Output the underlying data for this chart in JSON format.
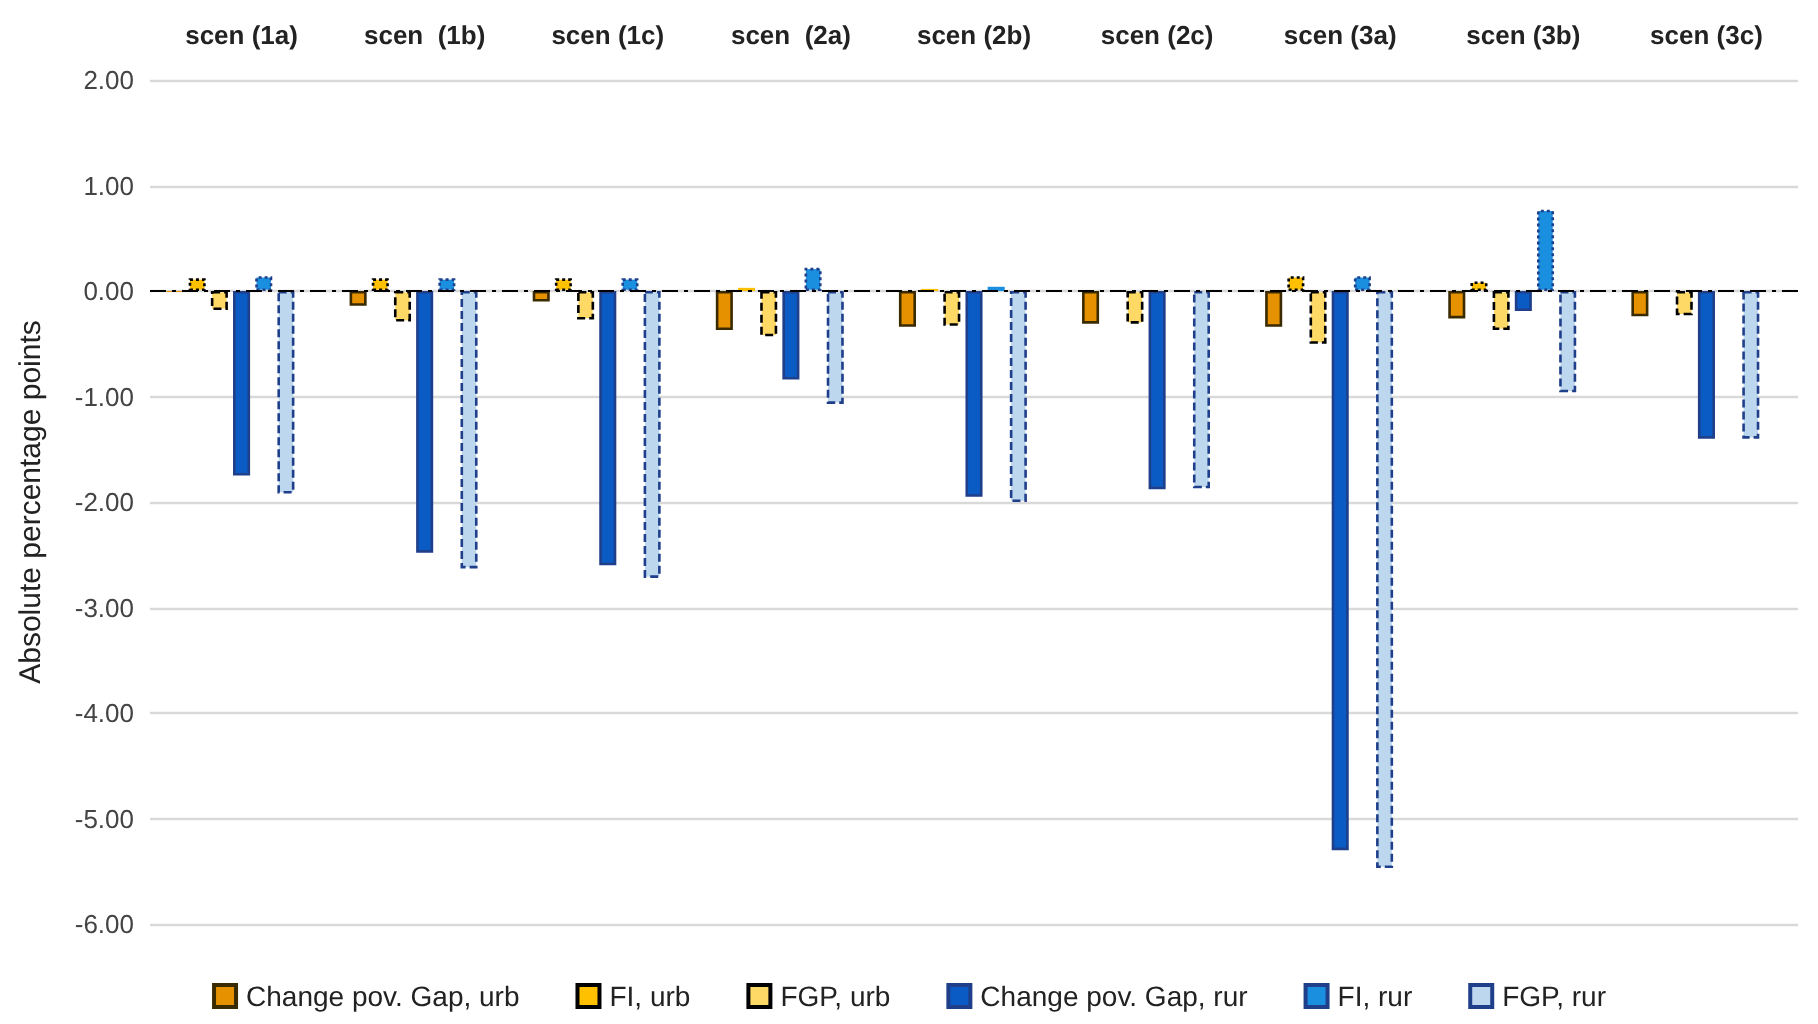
{
  "chart_data": {
    "type": "bar",
    "ylabel": "Absolute percentage points",
    "categories": [
      "scen (1a)",
      "scen  (1b)",
      "scen (1c)",
      "scen  (2a)",
      "scen (2b)",
      "scen (2c)",
      "scen (3a)",
      "scen (3b)",
      "scen (3c)"
    ],
    "series": [
      {
        "name": "Change pov. Gap, urb",
        "color": "#e69200",
        "line_style": "solid",
        "values": [
          -0.01,
          -0.14,
          -0.1,
          -0.37,
          -0.34,
          -0.31,
          -0.34,
          -0.26,
          -0.24
        ]
      },
      {
        "name": "FI, urb",
        "color": "#ffc000",
        "line_style": "dotted",
        "values": [
          0.12,
          0.12,
          0.12,
          0.03,
          0.02,
          null,
          0.14,
          0.09,
          null
        ]
      },
      {
        "name": "FGP, urb",
        "color": "#ffd966",
        "line_style": "dashed",
        "values": [
          -0.18,
          -0.29,
          -0.27,
          -0.43,
          -0.33,
          -0.31,
          -0.5,
          -0.37,
          -0.23
        ]
      },
      {
        "name": "Change pov. Gap, rur",
        "color": "#0a5bc4",
        "line_style": "solid",
        "values": [
          -1.75,
          -2.48,
          -2.6,
          -0.84,
          -1.95,
          -1.88,
          -5.3,
          -0.19,
          -1.4
        ]
      },
      {
        "name": "FI, rur",
        "color": "#1a8fe0",
        "line_style": "dotted",
        "values": [
          0.14,
          0.12,
          0.12,
          0.22,
          0.04,
          null,
          0.14,
          0.77,
          null
        ]
      },
      {
        "name": "FGP, rur",
        "color": "#bdd7ee",
        "line_style": "dashed",
        "values": [
          -1.92,
          -2.63,
          -2.72,
          -1.07,
          -2.0,
          -1.87,
          -5.47,
          -0.96,
          -1.4
        ]
      }
    ],
    "ylim": [
      -6,
      2
    ],
    "yticks": [
      {
        "value": -6,
        "label": "-6.00"
      },
      {
        "value": -5,
        "label": "-5.00"
      },
      {
        "value": -4,
        "label": "-4.00"
      },
      {
        "value": -3,
        "label": "-3.00"
      },
      {
        "value": -2,
        "label": "-2.00"
      },
      {
        "value": -1,
        "label": "-1.00"
      },
      {
        "value": 0,
        "label": "0.00"
      },
      {
        "value": 1,
        "label": "1.00"
      },
      {
        "value": 2,
        "label": "2.00"
      }
    ],
    "ref_lines": [
      {
        "axis": "y",
        "value": 0,
        "color": "#000000",
        "line_style": "dashed"
      }
    ],
    "grid": "y",
    "legend": "bottom"
  }
}
